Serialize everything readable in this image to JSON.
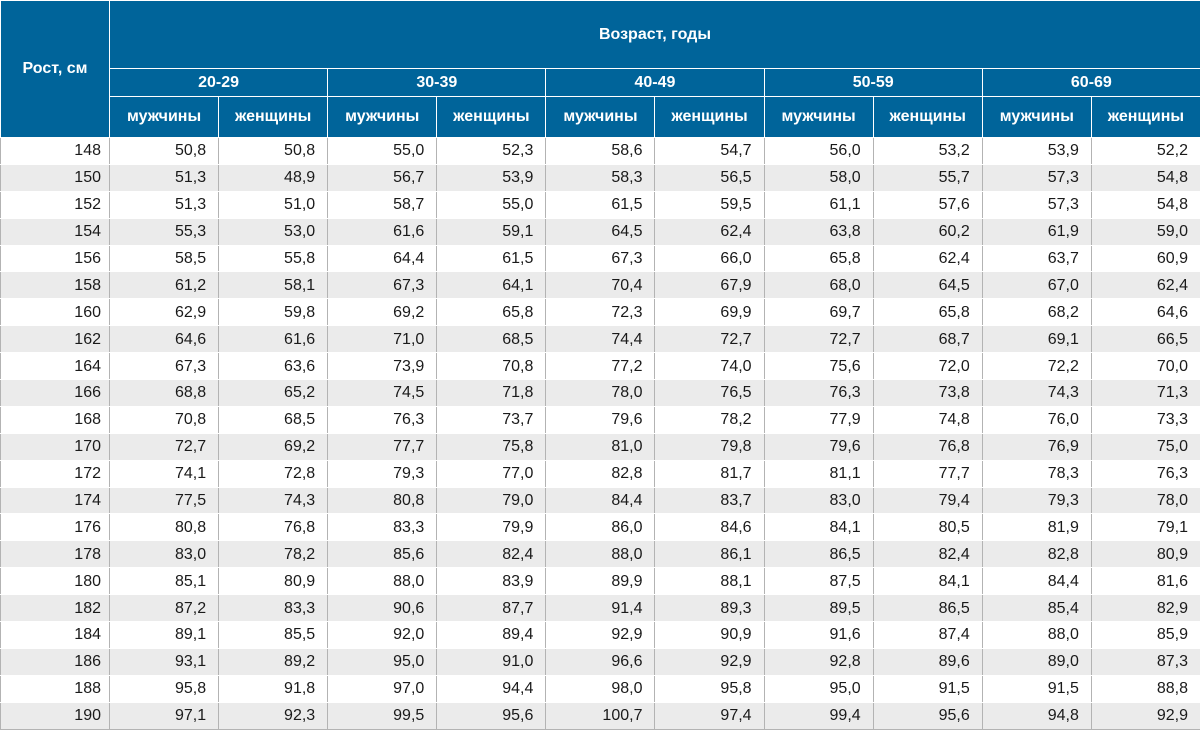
{
  "chart_data": {
    "type": "table",
    "row_header_label": "Рост, см",
    "column_group_label": "Возраст, годы",
    "age_groups": [
      "20-29",
      "30-39",
      "40-49",
      "50-59",
      "60-69"
    ],
    "sex_labels": [
      "мужчины",
      "женщины"
    ],
    "rows": [
      {
        "height": "148",
        "values": [
          "50,8",
          "50,8",
          "55,0",
          "52,3",
          "58,6",
          "54,7",
          "56,0",
          "53,2",
          "53,9",
          "52,2"
        ]
      },
      {
        "height": "150",
        "values": [
          "51,3",
          "48,9",
          "56,7",
          "53,9",
          "58,3",
          "56,5",
          "58,0",
          "55,7",
          "57,3",
          "54,8"
        ]
      },
      {
        "height": "152",
        "values": [
          "51,3",
          "51,0",
          "58,7",
          "55,0",
          "61,5",
          "59,5",
          "61,1",
          "57,6",
          "57,3",
          "54,8"
        ]
      },
      {
        "height": "154",
        "values": [
          "55,3",
          "53,0",
          "61,6",
          "59,1",
          "64,5",
          "62,4",
          "63,8",
          "60,2",
          "61,9",
          "59,0"
        ]
      },
      {
        "height": "156",
        "values": [
          "58,5",
          "55,8",
          "64,4",
          "61,5",
          "67,3",
          "66,0",
          "65,8",
          "62,4",
          "63,7",
          "60,9"
        ]
      },
      {
        "height": "158",
        "values": [
          "61,2",
          "58,1",
          "67,3",
          "64,1",
          "70,4",
          "67,9",
          "68,0",
          "64,5",
          "67,0",
          "62,4"
        ]
      },
      {
        "height": "160",
        "values": [
          "62,9",
          "59,8",
          "69,2",
          "65,8",
          "72,3",
          "69,9",
          "69,7",
          "65,8",
          "68,2",
          "64,6"
        ]
      },
      {
        "height": "162",
        "values": [
          "64,6",
          "61,6",
          "71,0",
          "68,5",
          "74,4",
          "72,7",
          "72,7",
          "68,7",
          "69,1",
          "66,5"
        ]
      },
      {
        "height": "164",
        "values": [
          "67,3",
          "63,6",
          "73,9",
          "70,8",
          "77,2",
          "74,0",
          "75,6",
          "72,0",
          "72,2",
          "70,0"
        ]
      },
      {
        "height": "166",
        "values": [
          "68,8",
          "65,2",
          "74,5",
          "71,8",
          "78,0",
          "76,5",
          "76,3",
          "73,8",
          "74,3",
          "71,3"
        ]
      },
      {
        "height": "168",
        "values": [
          "70,8",
          "68,5",
          "76,3",
          "73,7",
          "79,6",
          "78,2",
          "77,9",
          "74,8",
          "76,0",
          "73,3"
        ]
      },
      {
        "height": "170",
        "values": [
          "72,7",
          "69,2",
          "77,7",
          "75,8",
          "81,0",
          "79,8",
          "79,6",
          "76,8",
          "76,9",
          "75,0"
        ]
      },
      {
        "height": "172",
        "values": [
          "74,1",
          "72,8",
          "79,3",
          "77,0",
          "82,8",
          "81,7",
          "81,1",
          "77,7",
          "78,3",
          "76,3"
        ]
      },
      {
        "height": "174",
        "values": [
          "77,5",
          "74,3",
          "80,8",
          "79,0",
          "84,4",
          "83,7",
          "83,0",
          "79,4",
          "79,3",
          "78,0"
        ]
      },
      {
        "height": "176",
        "values": [
          "80,8",
          "76,8",
          "83,3",
          "79,9",
          "86,0",
          "84,6",
          "84,1",
          "80,5",
          "81,9",
          "79,1"
        ]
      },
      {
        "height": "178",
        "values": [
          "83,0",
          "78,2",
          "85,6",
          "82,4",
          "88,0",
          "86,1",
          "86,5",
          "82,4",
          "82,8",
          "80,9"
        ]
      },
      {
        "height": "180",
        "values": [
          "85,1",
          "80,9",
          "88,0",
          "83,9",
          "89,9",
          "88,1",
          "87,5",
          "84,1",
          "84,4",
          "81,6"
        ]
      },
      {
        "height": "182",
        "values": [
          "87,2",
          "83,3",
          "90,6",
          "87,7",
          "91,4",
          "89,3",
          "89,5",
          "86,5",
          "85,4",
          "82,9"
        ]
      },
      {
        "height": "184",
        "values": [
          "89,1",
          "85,5",
          "92,0",
          "89,4",
          "92,9",
          "90,9",
          "91,6",
          "87,4",
          "88,0",
          "85,9"
        ]
      },
      {
        "height": "186",
        "values": [
          "93,1",
          "89,2",
          "95,0",
          "91,0",
          "96,6",
          "92,9",
          "92,8",
          "89,6",
          "89,0",
          "87,3"
        ]
      },
      {
        "height": "188",
        "values": [
          "95,8",
          "91,8",
          "97,0",
          "94,4",
          "98,0",
          "95,8",
          "95,0",
          "91,5",
          "91,5",
          "88,8"
        ]
      },
      {
        "height": "190",
        "values": [
          "97,1",
          "92,3",
          "99,5",
          "95,6",
          "100,7",
          "97,4",
          "99,4",
          "95,6",
          "94,8",
          "92,9"
        ]
      }
    ]
  },
  "colors": {
    "header_bg": "#00649a",
    "header_text": "#ffffff",
    "row_alt_bg": "#ebebeb",
    "row_bg": "#ffffff",
    "cell_text": "#1a1a1a"
  }
}
